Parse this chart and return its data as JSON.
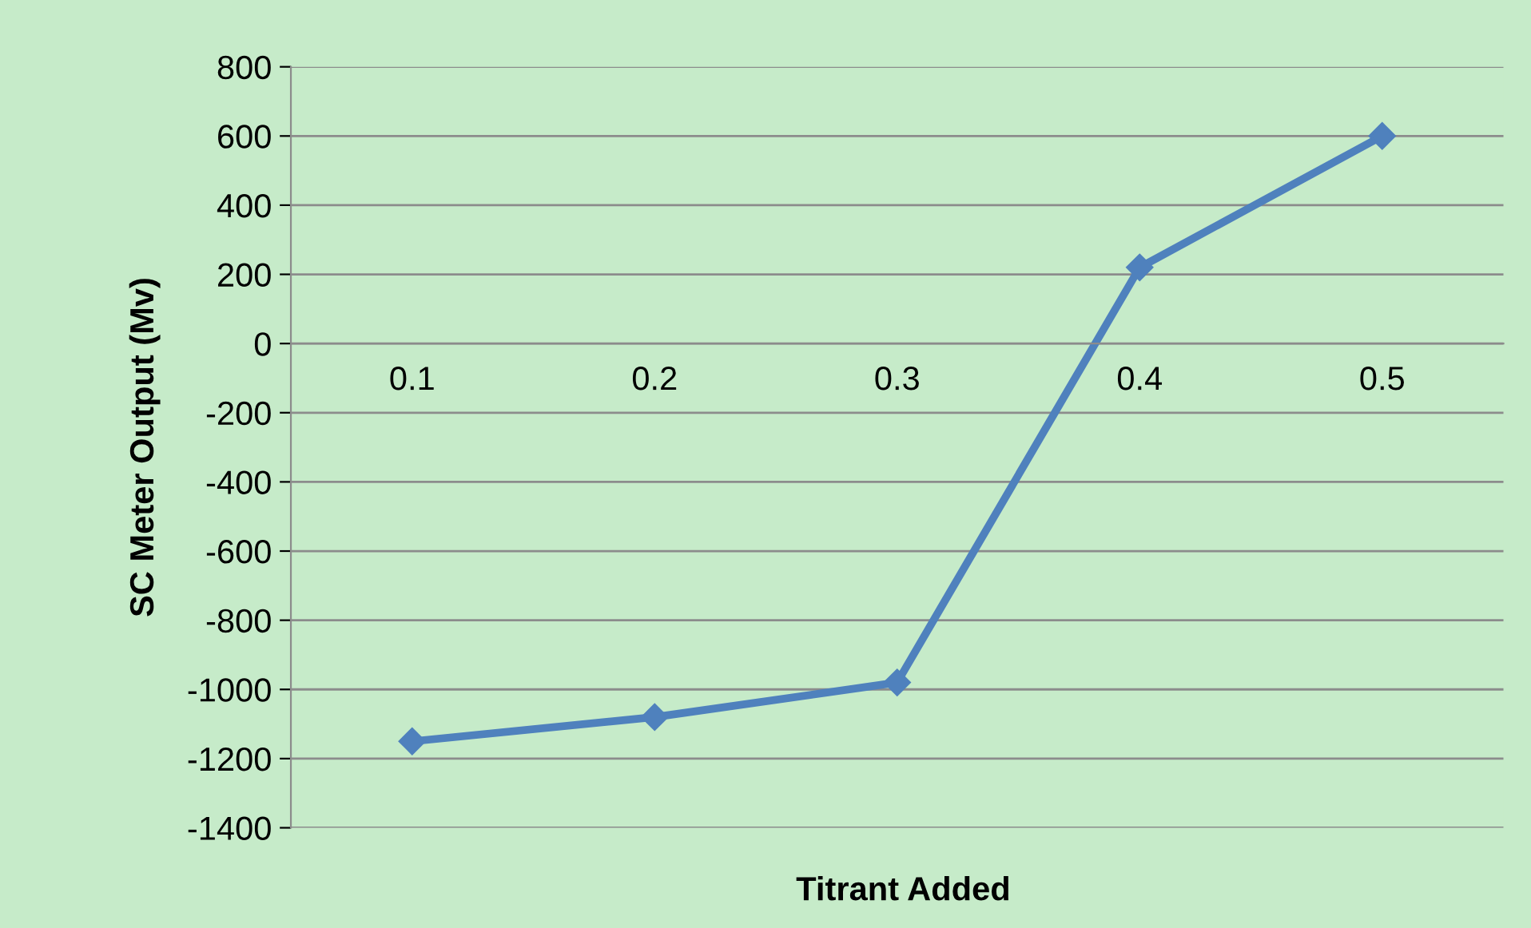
{
  "chart_data": {
    "type": "line",
    "xlabel": "Titrant Added",
    "ylabel": "SC Meter Output (Mv)",
    "categories": [
      "0.1",
      "0.2",
      "0.3",
      "0.4",
      "0.5"
    ],
    "series": [
      {
        "color": "#4f81bd",
        "values": [
          -1150,
          -1080,
          -980,
          220,
          600
        ]
      }
    ],
    "ylim": [
      -1400,
      800
    ],
    "yticks": [
      -1400,
      -1200,
      -1000,
      -800,
      -600,
      -400,
      -200,
      0,
      200,
      400,
      600,
      800
    ],
    "grid": "y",
    "marker": "diamond",
    "line_style": "solid",
    "legend": false
  }
}
